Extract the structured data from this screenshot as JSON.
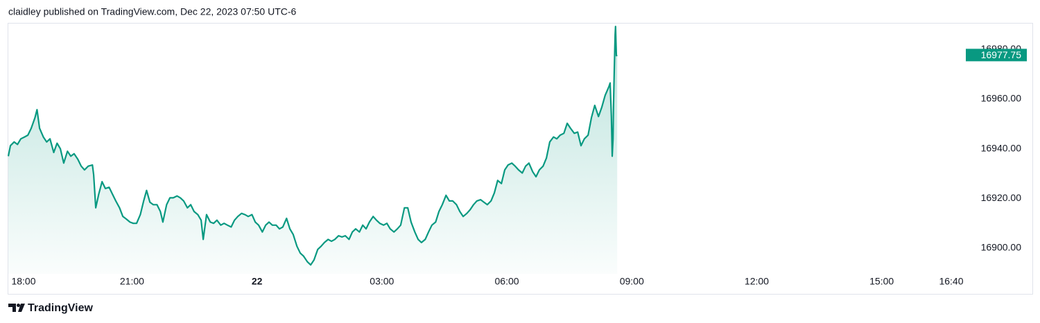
{
  "header": "claidley published on TradingView.com, Dec 22, 2023 07:50 UTC-6",
  "footer": {
    "brand": "TradingView"
  },
  "chart_data": {
    "type": "area",
    "color": "#089981",
    "xlim": [
      0.03,
      22.97
    ],
    "ylim": [
      16889.67,
      16990.7
    ],
    "xticks": [
      {
        "value": 0,
        "label": "18:00"
      },
      {
        "value": 3,
        "label": "21:00"
      },
      {
        "value": 6,
        "label": "22"
      },
      {
        "value": 9,
        "label": "03:00"
      },
      {
        "value": 12,
        "label": "06:00"
      },
      {
        "value": 15,
        "label": "09:00"
      },
      {
        "value": 18,
        "label": "12:00"
      },
      {
        "value": 21,
        "label": "15:00"
      },
      {
        "value": 22.67,
        "label": "16:40"
      }
    ],
    "yticks": [
      {
        "value": 16900,
        "label": "16900.00"
      },
      {
        "value": 16920,
        "label": "16920.00"
      },
      {
        "value": 16940,
        "label": "16940.00"
      },
      {
        "value": 16960,
        "label": "16960.00"
      },
      {
        "value": 16980,
        "label": "16980.00"
      }
    ],
    "x": [
      0.03,
      0.08,
      0.17,
      0.25,
      0.33,
      0.42,
      0.5,
      0.58,
      0.67,
      0.72,
      0.78,
      0.87,
      0.95,
      1.03,
      1.12,
      1.2,
      1.28,
      1.36,
      1.45,
      1.53,
      1.61,
      1.7,
      1.78,
      1.86,
      1.95,
      2.05,
      2.08,
      2.13,
      2.2,
      2.28,
      2.36,
      2.45,
      2.53,
      2.61,
      2.7,
      2.78,
      2.86,
      2.95,
      3.03,
      3.11,
      3.2,
      3.28,
      3.35,
      3.43,
      3.51,
      3.6,
      3.68,
      3.74,
      3.83,
      3.91,
      3.99,
      4.08,
      4.16,
      4.24,
      4.33,
      4.41,
      4.49,
      4.58,
      4.66,
      4.71,
      4.79,
      4.88,
      4.96,
      5.04,
      5.13,
      5.21,
      5.29,
      5.38,
      5.46,
      5.54,
      5.63,
      5.71,
      5.79,
      5.88,
      5.96,
      6.04,
      6.13,
      6.21,
      6.29,
      6.37,
      6.46,
      6.54,
      6.62,
      6.71,
      6.79,
      6.87,
      6.96,
      7.04,
      7.12,
      7.21,
      7.29,
      7.37,
      7.46,
      7.54,
      7.62,
      7.71,
      7.79,
      7.87,
      7.96,
      8.04,
      8.12,
      8.21,
      8.29,
      8.37,
      8.46,
      8.54,
      8.62,
      8.7,
      8.79,
      8.87,
      8.95,
      9.04,
      9.12,
      9.2,
      9.29,
      9.37,
      9.45,
      9.54,
      9.62,
      9.7,
      9.79,
      9.87,
      9.95,
      10.04,
      10.12,
      10.2,
      10.29,
      10.37,
      10.45,
      10.54,
      10.62,
      10.7,
      10.79,
      10.87,
      10.95,
      11.04,
      11.12,
      11.2,
      11.28,
      11.37,
      11.45,
      11.53,
      11.62,
      11.7,
      11.78,
      11.87,
      11.95,
      12.03,
      12.12,
      12.2,
      12.28,
      12.37,
      12.45,
      12.53,
      12.62,
      12.7,
      12.78,
      12.87,
      12.95,
      13.03,
      13.12,
      13.2,
      13.28,
      13.37,
      13.45,
      13.53,
      13.62,
      13.7,
      13.78,
      13.86,
      13.95,
      14.03,
      14.11,
      14.2,
      14.28,
      14.36,
      14.45,
      14.48,
      14.51,
      14.53,
      14.55,
      14.56,
      14.58,
      14.6,
      14.61,
      14.63,
      14.65
    ],
    "values": [
      16937.0,
      16941.25,
      16942.75,
      16941.75,
      16944.0,
      16944.75,
      16945.5,
      16948.25,
      16952.5,
      16955.75,
      16948.25,
      16944.75,
      16942.75,
      16944.0,
      16938.5,
      16942.25,
      16940.0,
      16934.25,
      16939.0,
      16937.0,
      16938.0,
      16935.75,
      16933.0,
      16931.5,
      16933.0,
      16933.5,
      16929.5,
      16916.25,
      16921.75,
      16926.75,
      16924.0,
      16924.5,
      16921.75,
      16919.0,
      16916.25,
      16912.75,
      16911.75,
      16910.5,
      16910.0,
      16910.0,
      16913.5,
      16919.0,
      16923.25,
      16918.5,
      16917.5,
      16917.5,
      16914.75,
      16910.5,
      16917.5,
      16920.25,
      16920.25,
      16921.0,
      16920.25,
      16919.0,
      16916.25,
      16917.5,
      16914.75,
      16913.5,
      16911.25,
      16903.5,
      16913.5,
      16910.5,
      16910.0,
      16911.25,
      16909.25,
      16910.0,
      16909.25,
      16908.5,
      16911.25,
      16912.75,
      16914.0,
      16913.5,
      16912.75,
      16913.5,
      16910.5,
      16909.25,
      16906.5,
      16909.25,
      16910.5,
      16909.25,
      16909.25,
      16907.75,
      16908.5,
      16912.0,
      16907.75,
      16905.5,
      16900.75,
      16898.0,
      16896.75,
      16894.5,
      16893.25,
      16895.25,
      16899.5,
      16900.75,
      16902.25,
      16903.5,
      16902.75,
      16903.5,
      16905.0,
      16904.5,
      16905.0,
      16903.5,
      16906.5,
      16907.75,
      16906.5,
      16909.25,
      16907.75,
      16910.5,
      16912.75,
      16911.25,
      16910.0,
      16909.25,
      16910.0,
      16907.75,
      16906.5,
      16907.75,
      16909.25,
      16916.25,
      16916.25,
      16910.5,
      16906.5,
      16903.5,
      16902.25,
      16903.5,
      16906.5,
      16909.25,
      16910.5,
      16914.75,
      16917.5,
      16921.25,
      16919.0,
      16919.0,
      16917.5,
      16914.75,
      16912.75,
      16914.0,
      16915.5,
      16917.5,
      16919.0,
      16919.5,
      16918.5,
      16917.5,
      16919.0,
      16922.25,
      16927.25,
      16926.0,
      16931.5,
      16933.5,
      16934.25,
      16933.0,
      16931.5,
      16930.25,
      16933.0,
      16934.25,
      16930.75,
      16928.75,
      16931.5,
      16933.0,
      16936.25,
      16942.75,
      16944.75,
      16944.0,
      16945.5,
      16946.25,
      16950.25,
      16948.25,
      16946.25,
      16946.75,
      16941.25,
      16944.0,
      16945.5,
      16952.5,
      16957.5,
      16953.0,
      16956.75,
      16961.5,
      16965.0,
      16966.5,
      16953.0,
      16937.0,
      16944.0,
      16956.75,
      16972.0,
      16986.0,
      16989.25,
      16977.5,
      16977.75
    ]
  }
}
